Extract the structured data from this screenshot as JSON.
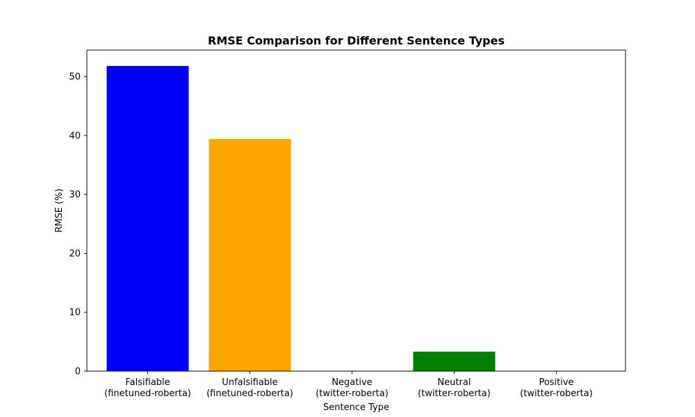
{
  "chart_data": {
    "type": "bar",
    "title": "RMSE Comparison for Different Sentence Types",
    "xlabel": "Sentence Type",
    "ylabel": "RMSE (%)",
    "ylim": [
      0,
      54.5
    ],
    "yticks": [
      0,
      10,
      20,
      30,
      40,
      50
    ],
    "grid": false,
    "categories": [
      [
        "Falsifiable",
        "(finetuned-roberta)"
      ],
      [
        "Unfalsifiable",
        "(finetuned-roberta)"
      ],
      [
        "Negative",
        "(twitter-roberta)"
      ],
      [
        "Neutral",
        "(twitter-roberta)"
      ],
      [
        "Positive",
        "(twitter-roberta)"
      ]
    ],
    "values": [
      51.8,
      39.4,
      0,
      3.3,
      0
    ],
    "colors": [
      "#0000ff",
      "#ffa500",
      "#ff0000",
      "#008000",
      "#800080"
    ]
  }
}
